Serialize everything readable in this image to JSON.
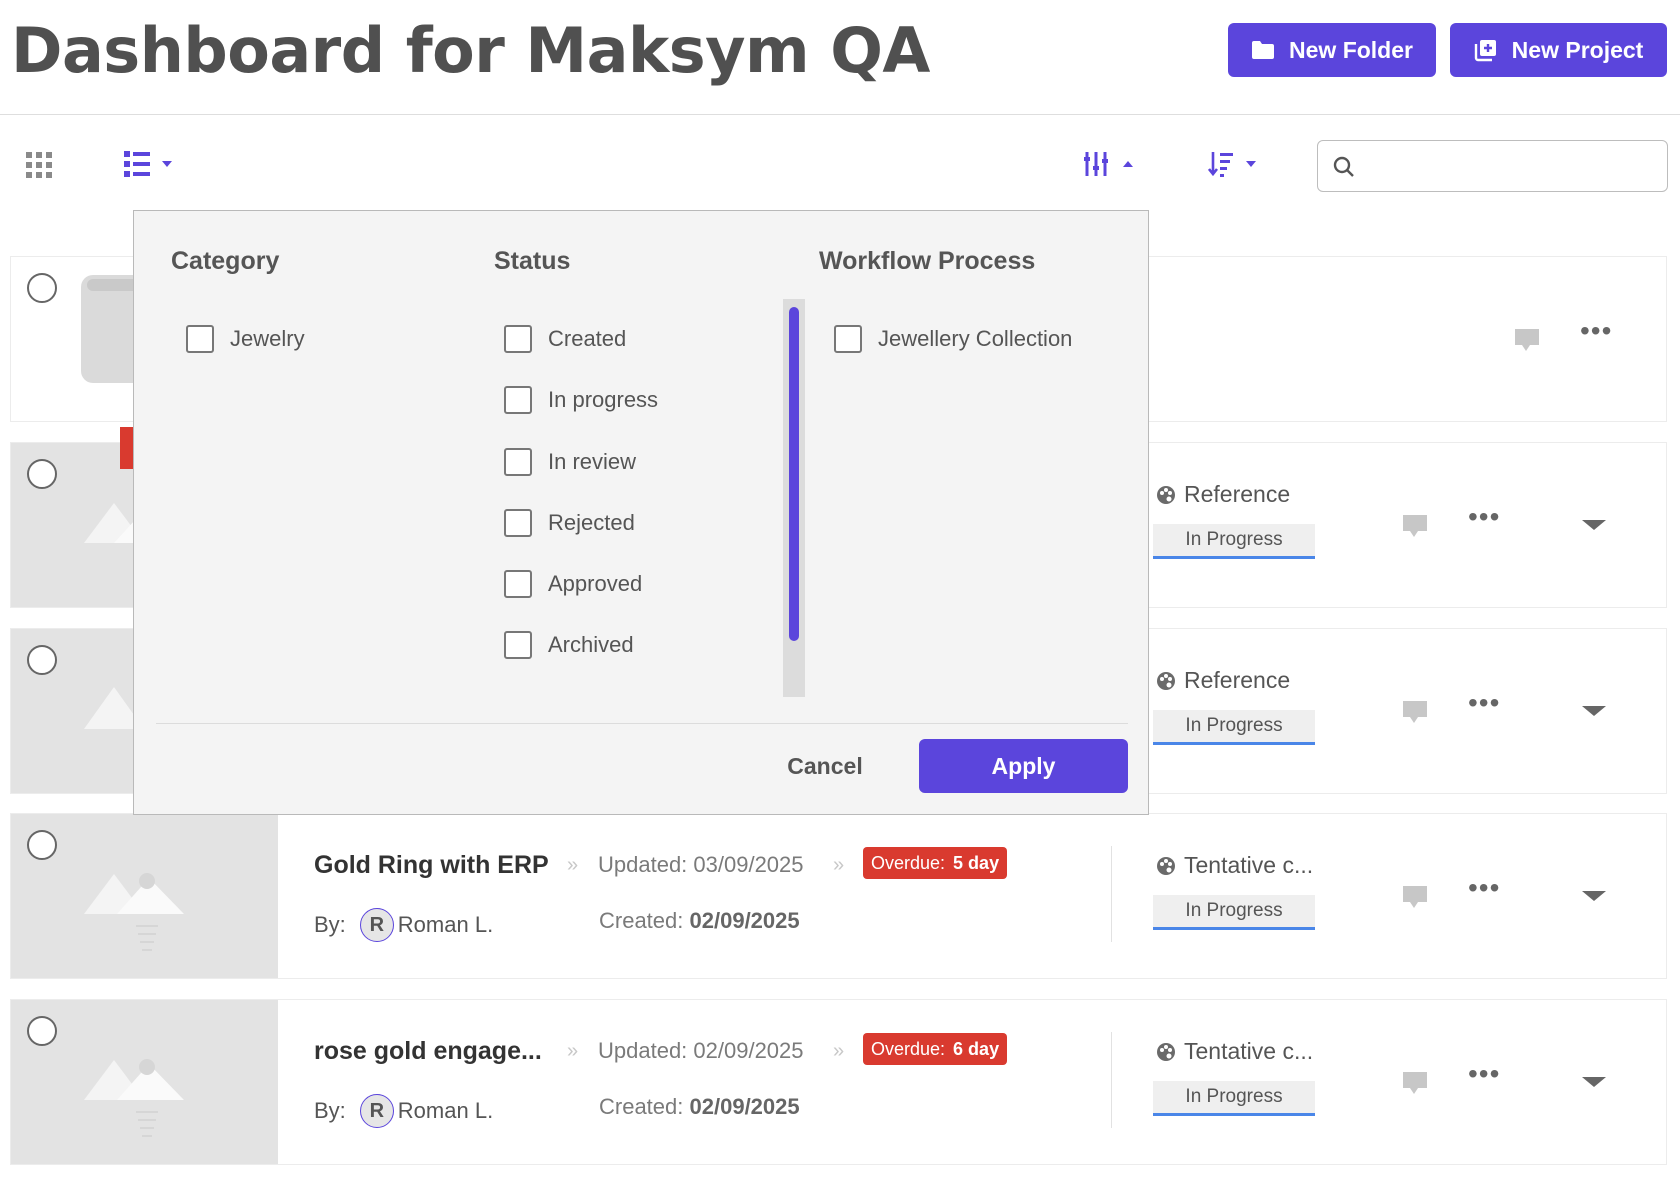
{
  "header": {
    "title": "Dashboard for Maksym QA",
    "new_folder_label": "New Folder",
    "new_project_label": "New Project"
  },
  "toolbar": {
    "search_placeholder": "",
    "accent_color": "#5b45dc"
  },
  "rows": [
    {
      "type": "folder",
      "workflow": "",
      "status": ""
    },
    {
      "type": "project",
      "workflow": "Reference",
      "status": "In Progress"
    },
    {
      "type": "project",
      "workflow": "Reference",
      "status": "In Progress"
    },
    {
      "type": "project",
      "title": "Gold Ring with ERP",
      "updated_label": "Updated: 03/09/2025",
      "overdue_label": "Overdue:",
      "overdue_value": "5 day",
      "by_label": "By:",
      "avatar_initial": "R",
      "author": "Roman L.",
      "created_label": "Created:",
      "created_date": "02/09/2025",
      "workflow": "Tentative c...",
      "status": "In Progress"
    },
    {
      "type": "project",
      "title": "rose gold engage...",
      "updated_label": "Updated: 02/09/2025",
      "overdue_label": "Overdue:",
      "overdue_value": "6 day",
      "by_label": "By:",
      "avatar_initial": "R",
      "author": "Roman L.",
      "created_label": "Created:",
      "created_date": "02/09/2025",
      "workflow": "Tentative c...",
      "status": "In Progress"
    }
  ],
  "filter": {
    "category_title": "Category",
    "status_title": "Status",
    "workflow_title": "Workflow Process",
    "categories": [
      "Jewelry"
    ],
    "statuses": [
      "Created",
      "In progress",
      "In review",
      "Rejected",
      "Approved",
      "Archived"
    ],
    "workflows": [
      "Jewellery Collection"
    ],
    "cancel_label": "Cancel",
    "apply_label": "Apply"
  }
}
